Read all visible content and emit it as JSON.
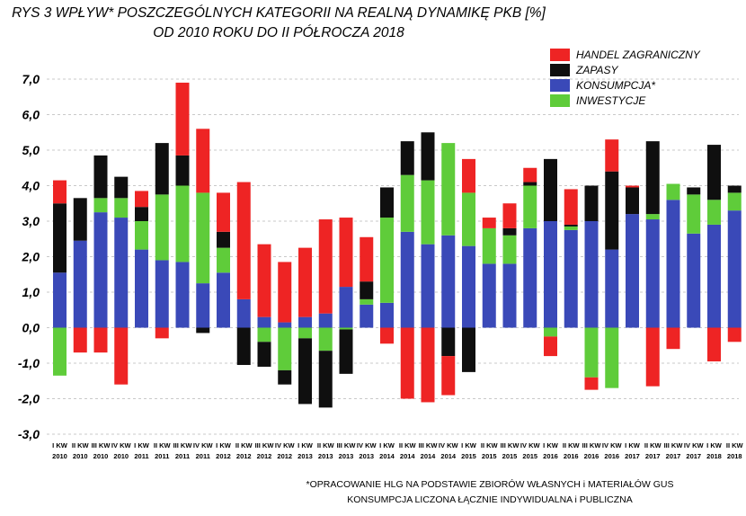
{
  "chart_data": {
    "type": "bar",
    "stacked": true,
    "title": "RYS 3 WPŁYW* POSZCZEGÓLNYCH KATEGORII  NA REALNĄ DYNAMIKĘ PKB [%]",
    "subtitle": "OD  2010 ROKU DO II PÓŁROCZA 2018",
    "ylim": [
      -3,
      7
    ],
    "yticks": [
      "7,0",
      "6,0",
      "5,0",
      "4,0",
      "3,0",
      "2,0",
      "1,0",
      "0,0",
      "-1,0",
      "-2,0",
      "-3,0"
    ],
    "legend_position": "top-right",
    "categories": [
      [
        "I KW",
        "2010"
      ],
      [
        "II KW",
        "2010"
      ],
      [
        "III KW",
        "2010"
      ],
      [
        "IV KW",
        "2010"
      ],
      [
        "I KW",
        "2011"
      ],
      [
        "II KW",
        "2011"
      ],
      [
        "III KW",
        "2011"
      ],
      [
        "IV KW",
        "2011"
      ],
      [
        "I KW",
        "2012"
      ],
      [
        "II KW",
        "2012"
      ],
      [
        "III KW",
        "2012"
      ],
      [
        "IV KW",
        "2012"
      ],
      [
        "I KW",
        "2013"
      ],
      [
        "II KW",
        "2013"
      ],
      [
        "III KW",
        "2013"
      ],
      [
        "IV KW",
        "2013"
      ],
      [
        "I KW",
        "2014"
      ],
      [
        "II KW",
        "2014"
      ],
      [
        "III KW",
        "2014"
      ],
      [
        "IV KW",
        "2014"
      ],
      [
        "I KW",
        "2015"
      ],
      [
        "II KW",
        "2015"
      ],
      [
        "III KW",
        "2015"
      ],
      [
        "IV KW",
        "2015"
      ],
      [
        "I KW",
        "2016"
      ],
      [
        "II KW",
        "2016"
      ],
      [
        "III KW",
        "2016"
      ],
      [
        "IV KW",
        "2016"
      ],
      [
        "I KW",
        "2017"
      ],
      [
        "II KW",
        "2017"
      ],
      [
        "III KW",
        "2017"
      ],
      [
        "IV KW",
        "2017"
      ],
      [
        "I KW",
        "2018"
      ],
      [
        "II KW",
        "2018"
      ]
    ],
    "series": [
      {
        "name": "KONSUMPCJA*",
        "color": "#3a49b8",
        "values": [
          1.55,
          2.45,
          3.25,
          3.1,
          2.2,
          1.9,
          1.85,
          1.25,
          1.55,
          0.8,
          0.3,
          0.15,
          0.3,
          0.4,
          1.15,
          0.65,
          0.7,
          2.7,
          2.35,
          2.6,
          2.3,
          1.8,
          1.8,
          2.8,
          3.0,
          2.75,
          3.0,
          2.2,
          3.2,
          3.05,
          3.6,
          2.65,
          2.9,
          3.3
        ]
      },
      {
        "name": "INWESTYCJE",
        "color": "#5fcc3a",
        "values": [
          -1.35,
          0,
          0.4,
          0.55,
          0.8,
          1.85,
          2.15,
          2.55,
          0.7,
          0,
          -0.4,
          -1.2,
          -0.3,
          -0.65,
          -0.05,
          0.15,
          2.4,
          1.6,
          1.8,
          2.6,
          1.5,
          1.0,
          0.8,
          1.2,
          -0.25,
          0.1,
          -1.4,
          -1.7,
          0,
          0.15,
          0.45,
          1.1,
          0.7,
          0.5
        ]
      },
      {
        "name": "ZAPASY",
        "color": "#0f0f0f",
        "values": [
          1.95,
          1.2,
          1.2,
          0.6,
          0.4,
          1.45,
          0.85,
          -0.15,
          0.45,
          -1.05,
          -0.7,
          -0.4,
          -1.85,
          -1.6,
          -1.25,
          0.5,
          0.85,
          0.95,
          1.35,
          -0.8,
          -1.25,
          0,
          0.2,
          0.1,
          1.75,
          0.05,
          1.0,
          2.2,
          0.75,
          2.05,
          0,
          0.2,
          1.55,
          0.2
        ]
      },
      {
        "name": "HANDEL ZAGRANICZNY",
        "color": "#ee2424",
        "values": [
          0.65,
          -0.7,
          -0.7,
          -1.6,
          0.45,
          -0.3,
          2.05,
          1.8,
          1.1,
          3.3,
          2.05,
          1.7,
          1.95,
          2.65,
          1.95,
          1.25,
          -0.45,
          -2.0,
          -2.1,
          -1.1,
          0.95,
          0.3,
          0.7,
          0.4,
          -0.55,
          1.0,
          -0.35,
          0.9,
          0.05,
          -1.65,
          -0.6,
          0.0,
          -0.95,
          -0.4
        ]
      }
    ],
    "legend_order": [
      "HANDEL ZAGRANICZNY",
      "ZAPASY",
      "KONSUMPCJA*",
      "INWESTYCJE"
    ],
    "footnote": [
      "*OPRACOWANIE HLG NA PODSTAWIE ZBIORÓW WŁASNYCH i MATERIAŁÓW GUS",
      "KONSUMPCJA LICZONA ŁĄCZNIE INDYWIDUALNA  i PUBLICZNA"
    ]
  }
}
